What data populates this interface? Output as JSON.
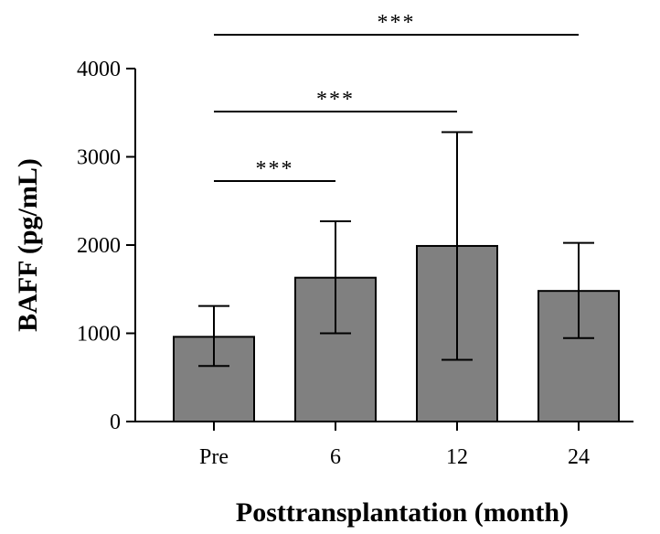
{
  "chart_data": {
    "type": "bar",
    "categories": [
      "Pre",
      "6",
      "12",
      "24"
    ],
    "series": [
      {
        "values": [
          960,
          1630,
          1990,
          1480
        ],
        "error_lower": [
          630,
          1000,
          700,
          945
        ],
        "error_upper": [
          1310,
          2270,
          3280,
          2025
        ]
      }
    ],
    "xlabel": "Posttransplantation (month)",
    "ylabel": "BAFF (pg/mL)",
    "ylim": [
      0,
      4000
    ],
    "yticks": [
      0,
      1000,
      2000,
      3000,
      4000
    ],
    "grid": false,
    "legend": "none",
    "bar_color": "#808080",
    "significance": [
      {
        "from": 0,
        "to": 1,
        "label": "***"
      },
      {
        "from": 0,
        "to": 2,
        "label": "***"
      },
      {
        "from": 0,
        "to": 3,
        "label": "***"
      }
    ]
  }
}
